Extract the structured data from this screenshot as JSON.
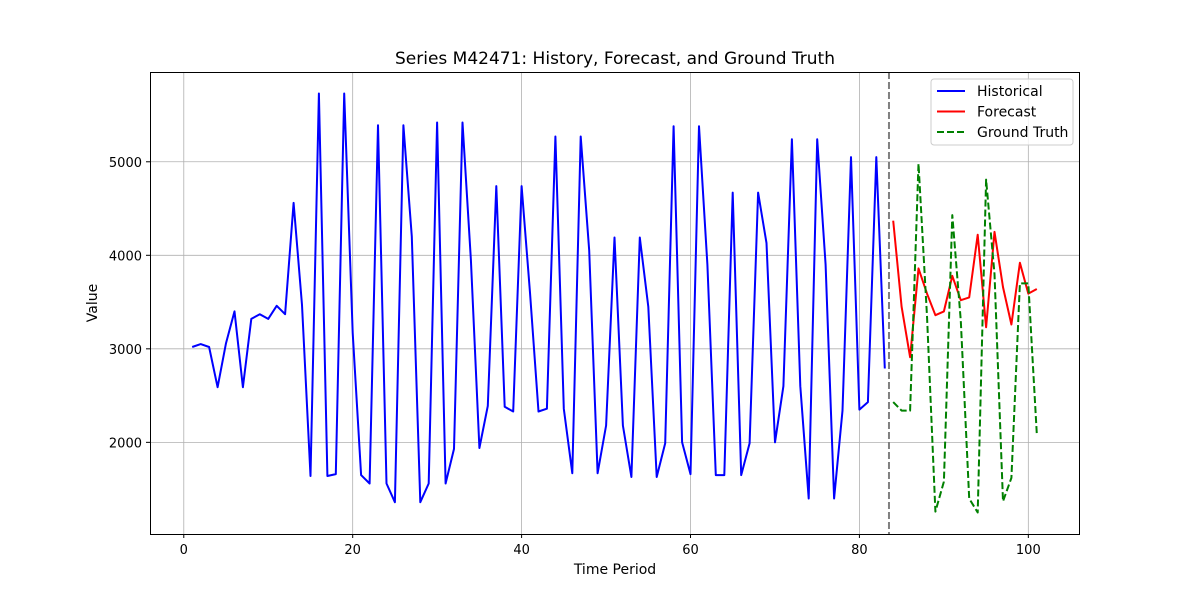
{
  "chart_data": {
    "type": "line",
    "title": "Series M42471: History, Forecast, and Ground Truth",
    "xlabel": "Time Period",
    "ylabel": "Value",
    "xlim": [
      -4,
      106
    ],
    "ylim": [
      1020,
      5960
    ],
    "x_ticks": [
      0,
      20,
      40,
      60,
      80,
      100
    ],
    "y_ticks": [
      2000,
      3000,
      4000,
      5000
    ],
    "grid": true,
    "legend_position": "top-right",
    "vline": {
      "x": 83.5,
      "color": "#808080",
      "style": "dashed"
    },
    "series": [
      {
        "name": "Historical",
        "color": "#0000ff",
        "style": "solid",
        "x": [
          1,
          2,
          3,
          4,
          5,
          6,
          7,
          8,
          9,
          10,
          11,
          12,
          13,
          14,
          15,
          16,
          17,
          18,
          19,
          20,
          21,
          22,
          23,
          24,
          25,
          26,
          27,
          28,
          29,
          30,
          31,
          32,
          33,
          34,
          35,
          36,
          37,
          38,
          39,
          40,
          41,
          42,
          43,
          44,
          45,
          46,
          47,
          48,
          49,
          50,
          51,
          52,
          53,
          54,
          55,
          56,
          57,
          58,
          59,
          60,
          61,
          62,
          63,
          64,
          65,
          66,
          67,
          68,
          69,
          70,
          71,
          72,
          73,
          74,
          75,
          76,
          77,
          78,
          79,
          80,
          81,
          82,
          83
        ],
        "values": [
          3020,
          3050,
          3020,
          2590,
          3060,
          3400,
          2590,
          3320,
          3370,
          3320,
          3460,
          3370,
          4560,
          3470,
          1640,
          5730,
          1640,
          1660,
          5730,
          3170,
          1650,
          1560,
          5390,
          1560,
          1360,
          5390,
          4200,
          1360,
          1560,
          5420,
          1560,
          1930,
          5420,
          3950,
          1940,
          2390,
          4740,
          2380,
          2330,
          4740,
          3600,
          2330,
          2360,
          5270,
          2360,
          1670,
          5270,
          4050,
          1670,
          2180,
          4190,
          2180,
          1630,
          4190,
          3450,
          1630,
          1990,
          5380,
          2000,
          1660,
          5380,
          3900,
          1650,
          1650,
          4670,
          1650,
          1990,
          4670,
          4130,
          2000,
          2600,
          5240,
          2600,
          1400,
          5240,
          3900,
          1400,
          2340,
          5050,
          2350,
          2430,
          5050,
          2790
        ]
      },
      {
        "name": "Forecast",
        "color": "#ff0000",
        "style": "solid",
        "x": [
          84,
          85,
          86,
          87,
          88,
          89,
          90,
          91,
          92,
          93,
          94,
          95,
          96,
          97,
          98,
          99,
          100,
          101
        ],
        "values": [
          4370,
          3450,
          2910,
          3860,
          3590,
          3360,
          3400,
          3780,
          3520,
          3550,
          4220,
          3230,
          4250,
          3660,
          3260,
          3920,
          3590,
          3640
        ]
      },
      {
        "name": "Ground Truth",
        "color": "#008000",
        "style": "dashed",
        "x": [
          84,
          85,
          86,
          87,
          88,
          89,
          90,
          91,
          92,
          93,
          94,
          95,
          96,
          97,
          98,
          99,
          100,
          101
        ],
        "values": [
          2430,
          2340,
          2340,
          4980,
          3350,
          1260,
          1580,
          4430,
          3300,
          1400,
          1250,
          4810,
          3800,
          1370,
          1620,
          3700,
          3700,
          2090
        ]
      }
    ]
  }
}
